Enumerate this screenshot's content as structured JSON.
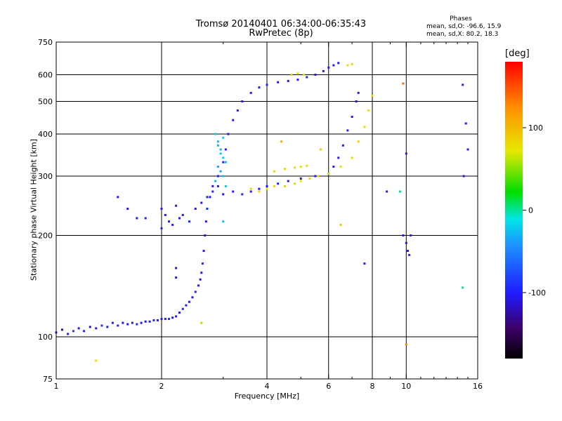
{
  "chart_data": {
    "type": "scatter",
    "title": "Tromsø 20140401 06:34:00-06:35:43",
    "subtitle": "RwPretec (8p)",
    "xlabel": "Frequency [MHz]",
    "ylabel": "Stationary phase Virtual Height [km]",
    "xscale": "log",
    "yscale": "log",
    "xlim": [
      1,
      16
    ],
    "ylim": [
      75,
      750
    ],
    "xticks": [
      1,
      2,
      4,
      6,
      8,
      10,
      16
    ],
    "xtick_labels": [
      "1",
      "2",
      "4",
      "6",
      "8",
      "10",
      "16"
    ],
    "yticks": [
      75,
      100,
      200,
      300,
      400,
      500,
      600,
      750
    ],
    "ytick_labels": [
      "75",
      "100",
      "200",
      "300",
      "400",
      "500",
      "600",
      "750"
    ],
    "grid": true,
    "stats": {
      "header": "Phases",
      "o_line": "mean, sd,O: -96.6, 15.9",
      "x_line": "mean, sd,X:  80.2, 18.3"
    },
    "colorbar": {
      "title": "[deg]",
      "range": [
        -180,
        180
      ],
      "ticks": [
        100,
        0,
        -100
      ],
      "tick_labels": [
        "100",
        "0",
        "-100"
      ],
      "colormap": "rainbow"
    },
    "series": [
      {
        "points": [
          [
            1.0,
            103,
            -95
          ],
          [
            1.04,
            105,
            -110
          ],
          [
            1.08,
            102,
            -100
          ],
          [
            1.12,
            104,
            -85
          ],
          [
            1.16,
            106,
            -105
          ],
          [
            1.2,
            104,
            -95
          ],
          [
            1.25,
            107,
            -110
          ],
          [
            1.3,
            106,
            -100
          ],
          [
            1.35,
            108,
            -90
          ],
          [
            1.4,
            107,
            -105
          ],
          [
            1.45,
            110,
            -100
          ],
          [
            1.5,
            108,
            -95
          ],
          [
            1.55,
            110,
            -110
          ],
          [
            1.6,
            109,
            -100
          ],
          [
            1.65,
            110,
            -105
          ],
          [
            1.7,
            109,
            -95
          ],
          [
            1.75,
            110,
            -100
          ],
          [
            1.8,
            111,
            -105
          ],
          [
            1.85,
            111,
            -100
          ],
          [
            1.9,
            112,
            -95
          ],
          [
            1.95,
            112,
            -100
          ],
          [
            2.0,
            113,
            -105
          ],
          [
            2.05,
            113,
            -100
          ],
          [
            2.1,
            113,
            -95
          ],
          [
            2.15,
            114,
            -100
          ],
          [
            2.2,
            115,
            -105
          ],
          [
            2.25,
            118,
            -100
          ],
          [
            2.3,
            121,
            -95
          ],
          [
            2.35,
            124,
            -100
          ],
          [
            2.4,
            127,
            -105
          ],
          [
            2.45,
            131,
            -100
          ],
          [
            2.5,
            136,
            -95
          ],
          [
            2.55,
            142,
            -100
          ],
          [
            2.58,
            148,
            -105
          ],
          [
            2.6,
            155,
            -100
          ],
          [
            2.62,
            165,
            -95
          ],
          [
            2.64,
            180,
            -100
          ],
          [
            2.66,
            200,
            -105
          ],
          [
            2.68,
            220,
            -100
          ],
          [
            2.7,
            240,
            -95
          ],
          [
            2.75,
            260,
            -100
          ],
          [
            2.8,
            280,
            -105
          ],
          [
            2.9,
            300,
            -100
          ],
          [
            3.0,
            330,
            -95
          ],
          [
            3.05,
            360,
            -100
          ],
          [
            3.1,
            400,
            -105
          ],
          [
            3.2,
            440,
            -100
          ],
          [
            3.3,
            470,
            -95
          ],
          [
            3.4,
            500,
            -100
          ],
          [
            3.6,
            530,
            -105
          ],
          [
            3.8,
            550,
            -100
          ],
          [
            4.0,
            560,
            -95
          ],
          [
            4.3,
            570,
            -100
          ],
          [
            4.6,
            575,
            -105
          ],
          [
            4.9,
            580,
            -100
          ],
          [
            5.2,
            590,
            -95
          ],
          [
            5.5,
            600,
            -100
          ],
          [
            5.8,
            615,
            -105
          ],
          [
            6.0,
            630,
            -100
          ],
          [
            6.2,
            640,
            -95
          ],
          [
            6.4,
            650,
            -100
          ]
        ]
      },
      {
        "points": [
          [
            2.0,
            240,
            -100
          ],
          [
            2.0,
            210,
            -95
          ],
          [
            2.05,
            230,
            -105
          ],
          [
            2.1,
            220,
            -100
          ],
          [
            2.15,
            215,
            -95
          ],
          [
            2.2,
            245,
            -100
          ],
          [
            2.25,
            225,
            -105
          ],
          [
            2.3,
            230,
            -100
          ],
          [
            2.4,
            220,
            -95
          ],
          [
            2.5,
            240,
            -100
          ],
          [
            2.6,
            250,
            -105
          ],
          [
            2.7,
            260,
            -100
          ],
          [
            2.8,
            270,
            -95
          ],
          [
            2.9,
            280,
            -100
          ],
          [
            3.0,
            265,
            -105
          ],
          [
            3.2,
            270,
            -100
          ],
          [
            3.4,
            265,
            -95
          ],
          [
            3.6,
            270,
            -100
          ],
          [
            3.8,
            275,
            -105
          ],
          [
            4.0,
            280,
            -100
          ],
          [
            4.3,
            285,
            -95
          ],
          [
            4.6,
            290,
            -100
          ],
          [
            5.0,
            295,
            -105
          ],
          [
            5.5,
            300,
            -100
          ],
          [
            6.0,
            305,
            -95
          ],
          [
            6.2,
            320,
            -100
          ],
          [
            6.4,
            340,
            -105
          ],
          [
            6.6,
            370,
            -100
          ],
          [
            6.8,
            410,
            -95
          ],
          [
            7.0,
            450,
            -100
          ],
          [
            7.2,
            500,
            -105
          ],
          [
            7.3,
            530,
            -100
          ]
        ]
      },
      {
        "points": [
          [
            2.85,
            400,
            -20
          ],
          [
            2.9,
            380,
            -25
          ],
          [
            2.95,
            360,
            -30
          ],
          [
            3.0,
            340,
            -20
          ],
          [
            2.9,
            320,
            -35
          ],
          [
            3.0,
            300,
            -25
          ],
          [
            2.85,
            290,
            -30
          ],
          [
            2.95,
            350,
            -20
          ],
          [
            3.05,
            330,
            -25
          ],
          [
            2.9,
            370,
            -30
          ],
          [
            3.0,
            390,
            -20
          ],
          [
            2.95,
            310,
            -35
          ],
          [
            3.05,
            280,
            -25
          ]
        ]
      },
      {
        "points": [
          [
            3.6,
            275,
            80
          ],
          [
            3.8,
            270,
            85
          ],
          [
            4.0,
            275,
            75
          ],
          [
            4.2,
            280,
            80
          ],
          [
            4.5,
            280,
            85
          ],
          [
            4.8,
            285,
            80
          ],
          [
            5.0,
            290,
            75
          ],
          [
            5.3,
            295,
            80
          ],
          [
            5.6,
            300,
            85
          ],
          [
            6.0,
            305,
            80
          ],
          [
            6.5,
            320,
            75
          ],
          [
            7.0,
            340,
            80
          ],
          [
            7.3,
            380,
            85
          ],
          [
            7.6,
            420,
            80
          ],
          [
            7.8,
            470,
            75
          ],
          [
            8.0,
            520,
            80
          ],
          [
            4.2,
            310,
            80
          ],
          [
            4.5,
            315,
            85
          ],
          [
            4.8,
            318,
            80
          ],
          [
            5.0,
            320,
            75
          ],
          [
            5.2,
            322,
            80
          ],
          [
            4.7,
            600,
            85
          ],
          [
            4.9,
            605,
            80
          ],
          [
            5.1,
            600,
            75
          ],
          [
            6.8,
            640,
            80
          ],
          [
            7.0,
            645,
            85
          ]
        ]
      },
      {
        "points": [
          [
            1.6,
            240,
            -100
          ],
          [
            1.7,
            225,
            -105
          ],
          [
            1.8,
            225,
            -95
          ],
          [
            1.5,
            260,
            -100
          ],
          [
            2.2,
            160,
            -100
          ],
          [
            2.2,
            150,
            -95
          ],
          [
            9.8,
            200,
            -100
          ],
          [
            10.0,
            190,
            -105
          ],
          [
            10.1,
            180,
            -100
          ],
          [
            10.2,
            175,
            -95
          ],
          [
            10.0,
            350,
            -100
          ],
          [
            10.3,
            200,
            -100
          ],
          [
            14.5,
            560,
            -100
          ],
          [
            14.8,
            430,
            -100
          ],
          [
            15.0,
            360,
            -95
          ],
          [
            14.6,
            300,
            -105
          ],
          [
            8.8,
            270,
            -100
          ],
          [
            10.0,
            95,
            130
          ],
          [
            14.5,
            140,
            0
          ],
          [
            7.6,
            165,
            -100
          ],
          [
            6.5,
            215,
            90
          ],
          [
            3.0,
            220,
            -30
          ],
          [
            1.3,
            85,
            80
          ],
          [
            2.6,
            110,
            60
          ],
          [
            9.6,
            270,
            0
          ],
          [
            9.8,
            565,
            140
          ],
          [
            4.4,
            380,
            110
          ],
          [
            5.7,
            360,
            90
          ]
        ]
      }
    ]
  }
}
